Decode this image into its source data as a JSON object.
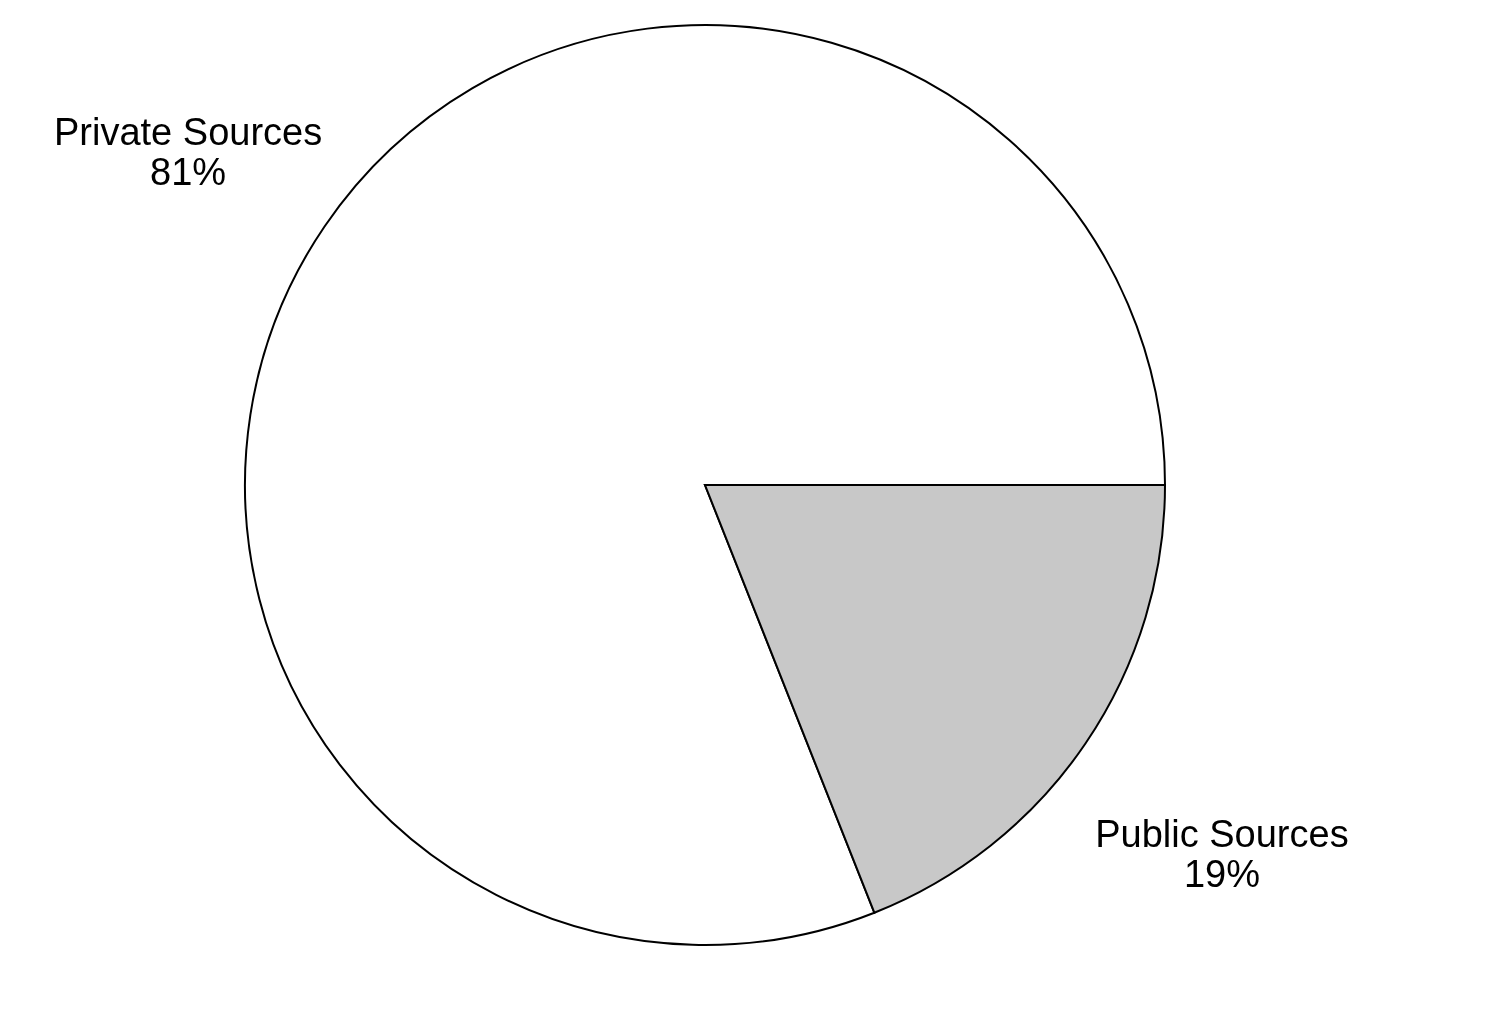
{
  "chart_data": {
    "type": "pie",
    "categories": [
      "Private Sources",
      "Public Sources"
    ],
    "values": [
      81,
      19
    ],
    "colors": [
      "#ffffff",
      "#c8c8c8"
    ],
    "value_labels": [
      "81%",
      "19%"
    ],
    "legend": false
  }
}
